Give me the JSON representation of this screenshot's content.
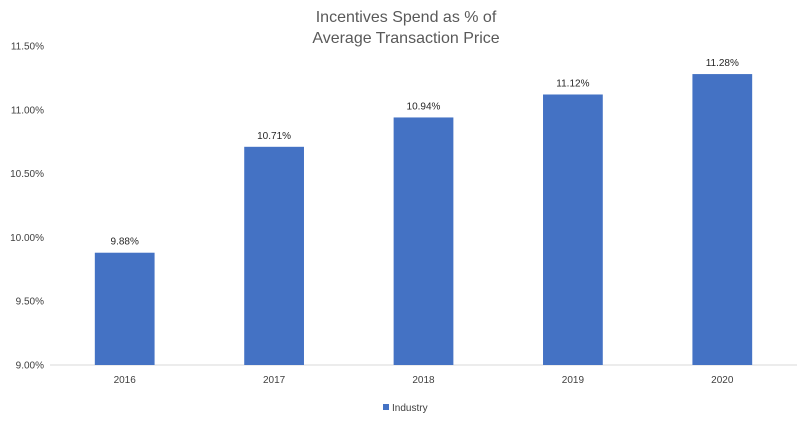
{
  "chart_data": {
    "type": "bar",
    "title_lines": [
      "Incentives Spend as % of",
      "Average Transaction Price"
    ],
    "categories": [
      "2016",
      "2017",
      "2018",
      "2019",
      "2020"
    ],
    "series": [
      {
        "name": "Industry",
        "values": [
          9.88,
          10.71,
          10.94,
          11.12,
          11.28
        ],
        "labels": [
          "9.88%",
          "10.71%",
          "10.94%",
          "11.12%",
          "11.28%"
        ],
        "color": "#4472C4"
      }
    ],
    "ylim": [
      9.0,
      11.5
    ],
    "yticks": [
      9.0,
      9.5,
      10.0,
      10.5,
      11.0,
      11.5
    ],
    "ytick_labels": [
      "9.00%",
      "9.50%",
      "10.00%",
      "10.50%",
      "11.00%",
      "11.50%"
    ],
    "grid": false,
    "legend_position": "bottom"
  }
}
